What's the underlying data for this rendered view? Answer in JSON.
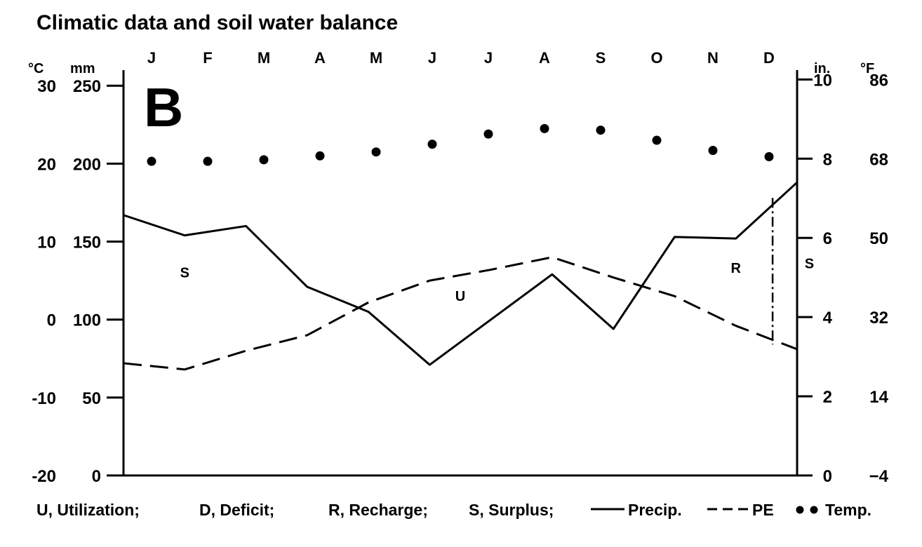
{
  "chart_data": {
    "type": "line",
    "title": "Climatic data and soil water balance",
    "panel_label": "B",
    "categories": [
      "J",
      "F",
      "M",
      "A",
      "M",
      "J",
      "J",
      "A",
      "S",
      "O",
      "N",
      "D"
    ],
    "left_axes": {
      "celsius_unit": "°C",
      "mm_unit": "mm",
      "celsius_ticks": [
        "30",
        "20",
        "10",
        "0",
        "-10",
        "-20"
      ],
      "mm_ticks": [
        "250",
        "200",
        "150",
        "100",
        "50",
        "0"
      ],
      "ylim_mm": [
        0,
        250
      ]
    },
    "right_axes": {
      "inch_unit": "in.",
      "fahrenheit_unit": "°F",
      "inch_ticks": [
        "10",
        "8",
        "6",
        "4",
        "2",
        "0"
      ],
      "fahrenheit_ticks": [
        "86",
        "68",
        "50",
        "32",
        "14",
        "−4"
      ]
    },
    "series": [
      {
        "name": "Precip.",
        "style": "solid",
        "axis": "mm",
        "values": [
          167,
          154,
          160,
          121,
          105,
          71,
          100,
          129,
          94,
          153,
          152,
          188
        ]
      },
      {
        "name": "PE",
        "style": "dashed",
        "axis": "mm",
        "values": [
          72,
          68,
          80,
          90,
          111,
          125,
          132,
          140,
          127,
          115,
          96,
          81
        ]
      },
      {
        "name": "Temp.",
        "style": "dots",
        "axis": "celsius",
        "values": [
          20.3,
          20.3,
          20.5,
          21.0,
          21.5,
          22.5,
          23.8,
          24.5,
          24.3,
          23.0,
          21.7,
          20.9
        ]
      }
    ],
    "zones": [
      {
        "label": "S",
        "x": 1.0,
        "y": 127
      },
      {
        "label": "U",
        "x": 5.5,
        "y": 112
      },
      {
        "label": "R",
        "x": 10.0,
        "y": 130
      },
      {
        "label": "S",
        "x": 11.2,
        "y": 133
      }
    ],
    "legend": [
      "U, Utilization;",
      "D, Deficit;",
      "R, Recharge;",
      "S, Surplus;",
      "Precip.",
      "PE",
      "Temp."
    ]
  }
}
